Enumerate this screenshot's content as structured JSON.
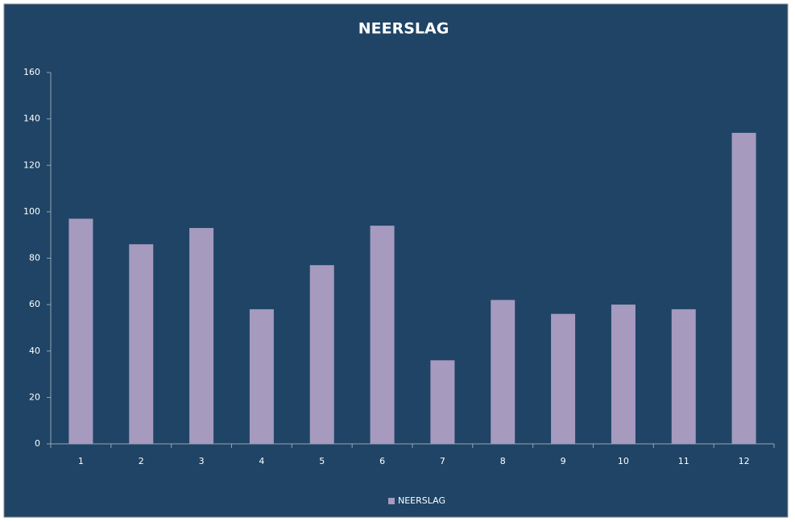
{
  "chart_data": {
    "type": "bar",
    "title": "NEERSLAG",
    "categories": [
      "1",
      "2",
      "3",
      "4",
      "5",
      "6",
      "7",
      "8",
      "9",
      "10",
      "11",
      "12"
    ],
    "series": [
      {
        "name": "NEERSLAG",
        "color": "#a69abf",
        "values": [
          97,
          86,
          93,
          58,
          77,
          94,
          36,
          62,
          56,
          60,
          58,
          134
        ]
      }
    ],
    "ylim": [
      0,
      160
    ],
    "yticks": [
      0,
      20,
      40,
      60,
      80,
      100,
      120,
      140,
      160
    ],
    "grid": false,
    "legend": "bottom"
  }
}
